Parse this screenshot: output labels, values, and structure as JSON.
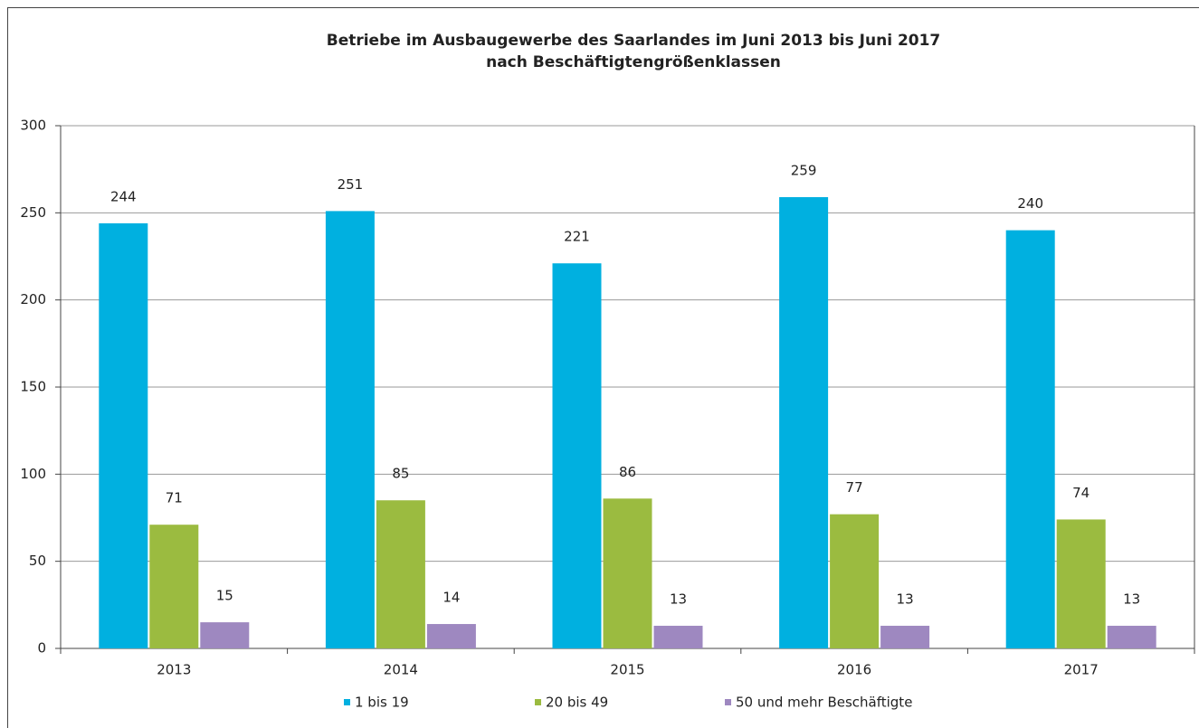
{
  "chart_data": {
    "type": "bar",
    "title": [
      "Betriebe im Ausbaugewerbe des Saarlandes im Juni 2013 bis Juni 2017",
      "nach Beschäftigtengrößenklassen"
    ],
    "categories": [
      "2013",
      "2014",
      "2015",
      "2016",
      "2017"
    ],
    "series": [
      {
        "name": "1 bis 19",
        "color": "#00b0e0",
        "values": [
          244,
          251,
          221,
          259,
          240
        ]
      },
      {
        "name": "20 bis 49",
        "color": "#9bbb40",
        "values": [
          71,
          85,
          86,
          77,
          74
        ]
      },
      {
        "name": "50 und mehr Beschäftigte",
        "color": "#9e88c0",
        "values": [
          15,
          14,
          13,
          13,
          13
        ]
      }
    ],
    "ylim": [
      0,
      300
    ],
    "yticks": [
      0,
      50,
      100,
      150,
      200,
      250,
      300
    ],
    "grid": true,
    "legend": "bottom"
  }
}
